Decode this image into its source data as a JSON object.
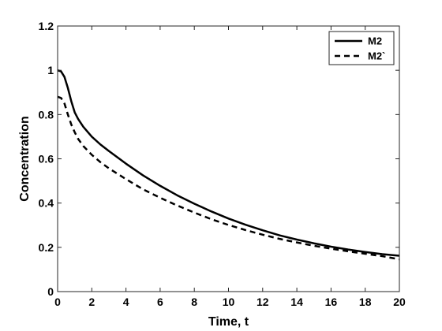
{
  "chart_data": {
    "type": "line",
    "title": "",
    "xlabel": "Time, t",
    "ylabel": "Concentration",
    "xlim": [
      0,
      20
    ],
    "ylim": [
      0,
      1.2
    ],
    "x_ticks": [
      0,
      2,
      4,
      6,
      8,
      10,
      12,
      14,
      16,
      18,
      20
    ],
    "y_ticks": [
      0,
      0.2,
      0.4,
      0.6,
      0.8,
      1,
      1.2
    ],
    "x_tick_labels": [
      "0",
      "2",
      "4",
      "6",
      "8",
      "10",
      "12",
      "14",
      "16",
      "18",
      "20"
    ],
    "y_tick_labels": [
      "0",
      "0.2",
      "0.4",
      "0.6",
      "0.8",
      "1",
      "1.2"
    ],
    "grid": false,
    "legend_position": "top-right",
    "series": [
      {
        "name": "M2",
        "line_style": "solid",
        "color": "#000000",
        "x": [
          0,
          0.2,
          0.4,
          0.6,
          0.8,
          1,
          1.2,
          1.5,
          2,
          2.5,
          3,
          4,
          5,
          6,
          7,
          8,
          9,
          10,
          11,
          12,
          13,
          14,
          15,
          16,
          17,
          18,
          19,
          20
        ],
        "y": [
          1.0,
          0.995,
          0.97,
          0.92,
          0.86,
          0.81,
          0.78,
          0.745,
          0.7,
          0.665,
          0.635,
          0.578,
          0.525,
          0.478,
          0.435,
          0.397,
          0.362,
          0.33,
          0.302,
          0.277,
          0.254,
          0.235,
          0.218,
          0.203,
          0.19,
          0.179,
          0.169,
          0.162
        ]
      },
      {
        "name": "M2`",
        "line_style": "dashed",
        "color": "#000000",
        "x": [
          0,
          0.2,
          0.4,
          0.6,
          0.8,
          1,
          1.2,
          1.5,
          2,
          2.5,
          3,
          4,
          5,
          6,
          7,
          8,
          9,
          10,
          11,
          12,
          13,
          14,
          15,
          16,
          17,
          18,
          19,
          20
        ],
        "y": [
          0.88,
          0.875,
          0.85,
          0.8,
          0.755,
          0.72,
          0.69,
          0.658,
          0.618,
          0.585,
          0.557,
          0.508,
          0.462,
          0.424,
          0.389,
          0.357,
          0.327,
          0.301,
          0.278,
          0.257,
          0.238,
          0.222,
          0.207,
          0.194,
          0.182,
          0.171,
          0.16,
          0.146
        ]
      }
    ]
  }
}
